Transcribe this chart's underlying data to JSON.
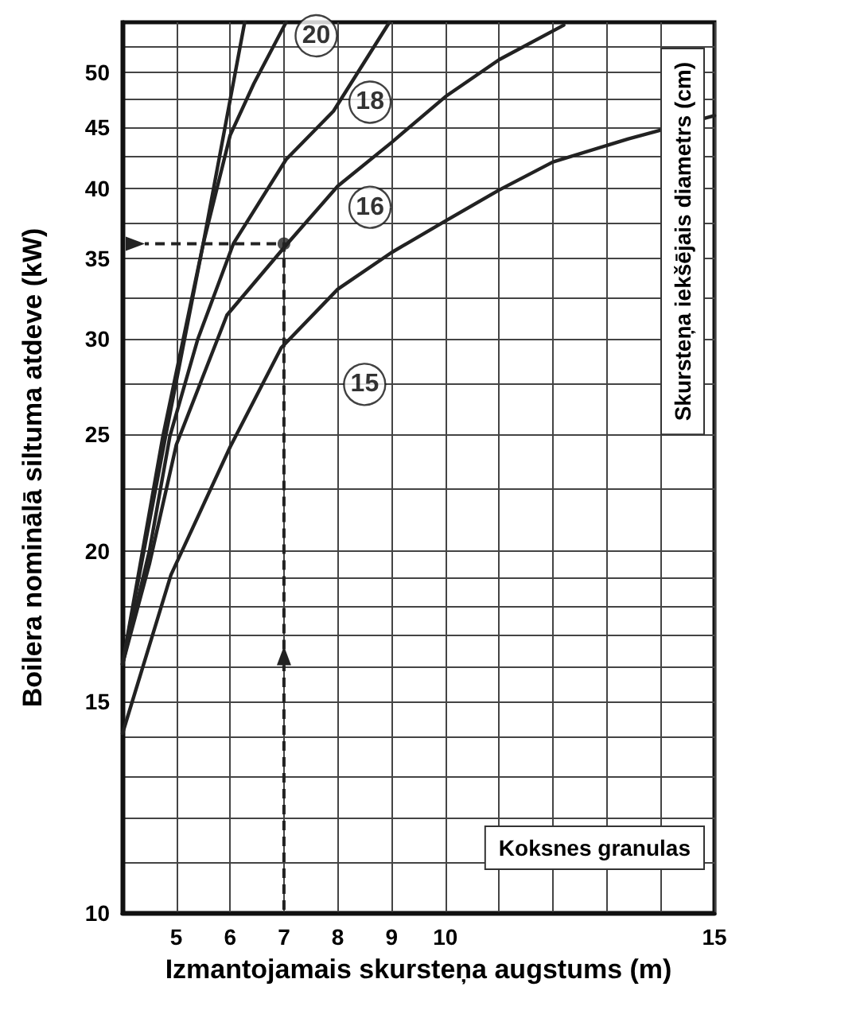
{
  "chart_data": {
    "type": "line",
    "xlabel": "Izmantojamais skursteņa augstums (m)",
    "ylabel": "Boilera nominālā siltuma atdeve (kW)",
    "xlim": [
      4,
      15
    ],
    "xticks": [
      5,
      6,
      7,
      8,
      9,
      10,
      {
        "value": 11,
        "label": null
      },
      {
        "value": 12,
        "label": null
      },
      {
        "value": 13,
        "label": null
      },
      {
        "value": 14,
        "label": null
      },
      15
    ],
    "ylim": [
      10,
      55
    ],
    "yticks": [
      10,
      {
        "value": 11,
        "label": null
      },
      {
        "value": 12,
        "label": null
      },
      {
        "value": 13,
        "label": null
      },
      {
        "value": 14,
        "label": null
      },
      15,
      {
        "value": 16,
        "label": null
      },
      {
        "value": 17,
        "label": null
      },
      {
        "value": 18,
        "label": null
      },
      {
        "value": 19,
        "label": null
      },
      20,
      {
        "value": 22.5,
        "label": null
      },
      25,
      {
        "value": 27.5,
        "label": null
      },
      30,
      {
        "value": 32.5,
        "label": null
      },
      35,
      {
        "value": 37.5,
        "label": null
      },
      40,
      {
        "value": 42.5,
        "label": null
      },
      45,
      {
        "value": 47.5,
        "label": null
      },
      50,
      {
        "value": 52.5,
        "label": null
      }
    ],
    "log": "y",
    "grid": true,
    "marker": "none",
    "line_style": "solid",
    "series": [
      {
        "color": "#222222",
        "x": [
          4,
          4.75,
          5.5,
          6.27
        ],
        "values": [
          16.1,
          24.9,
          36,
          55
        ]
      },
      {
        "color": "#222222",
        "x": [
          4,
          4.8,
          5.5,
          6.0,
          6.44,
          7.04
        ],
        "values": [
          16.1,
          24.9,
          36,
          44.3,
          48.9,
          55
        ]
      },
      {
        "color": "#222222",
        "x": [
          4,
          4.5,
          4.88,
          5.4,
          6.06,
          7.04,
          7.92,
          8.96
        ],
        "values": [
          16.1,
          20,
          24.9,
          30,
          36,
          42.3,
          46.4,
          55
        ]
      },
      {
        "color": "#222222",
        "x": [
          4,
          4.5,
          5.0,
          5.94,
          7.04,
          8,
          9,
          10,
          11,
          12.2
        ],
        "values": [
          16.1,
          19.5,
          24.5,
          31.4,
          35.9,
          40.2,
          43.7,
          47.7,
          51.2,
          54.7
        ]
      },
      {
        "color": "#222222",
        "x": [
          4,
          4.9,
          6,
          6.95,
          8,
          9,
          10,
          11,
          12,
          13.4,
          15
        ],
        "values": [
          14.1,
          19.1,
          24.4,
          29.5,
          33,
          35.4,
          37.6,
          39.9,
          42.1,
          44,
          46
        ]
      },
      {
        "type": "scatter",
        "color": "#222222",
        "x": [
          7
        ],
        "values": [
          36
        ],
        "marker": "circle"
      }
    ],
    "annotations": [
      {
        "text": "20",
        "x": 7.6,
        "y": 53.6
      },
      {
        "text": "18",
        "x": 8.6,
        "y": 47.2
      },
      {
        "text": "16",
        "x": 8.6,
        "y": 38.6
      },
      {
        "text": "15",
        "x": 8.5,
        "y": 27.5
      },
      "Skursteņa iekšējais diametrs (cm)",
      "Koksnes granulas"
    ]
  }
}
